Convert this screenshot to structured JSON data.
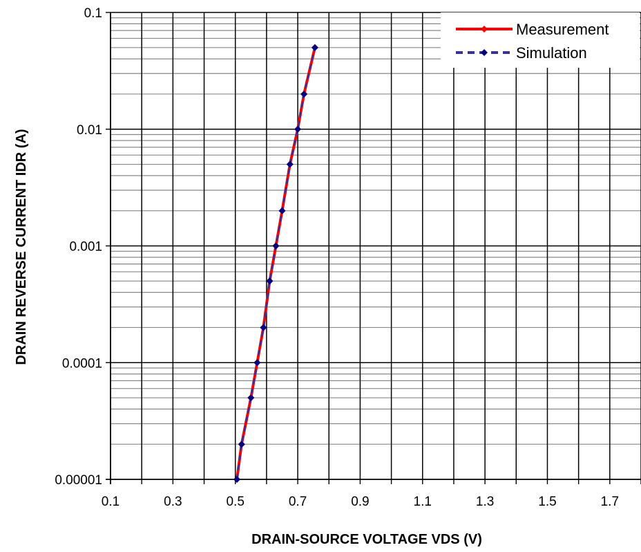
{
  "chart_data": {
    "type": "line",
    "title": "",
    "xlabel": "DRAIN-SOURCE VOLTAGE VDS (V)",
    "ylabel": "DRAIN REVERSE CURRENT IDR (A)",
    "xlim": [
      0.1,
      1.8
    ],
    "ylim": [
      1e-05,
      0.1
    ],
    "yscale": "log",
    "grid": true,
    "legend_position": "top-right",
    "x_tick_labels": [
      "0.1",
      "0.3",
      "0.5",
      "0.7",
      "0.9",
      "1.1",
      "1.3",
      "1.5",
      "1.7"
    ],
    "x_tick_values": [
      0.1,
      0.3,
      0.5,
      0.7,
      0.9,
      1.1,
      1.3,
      1.5,
      1.7
    ],
    "y_tick_labels": [
      "0.1",
      "0.01",
      "0.001",
      "0.0001",
      "0.00001"
    ],
    "y_tick_values": [
      0.1,
      0.01,
      0.001,
      0.0001,
      1e-05
    ],
    "series": [
      {
        "name": "Measurement",
        "color": "#ff0000",
        "line_style": "solid",
        "marker": "diamond",
        "marker_color": "#ff0000",
        "x": [
          0.505,
          0.52,
          0.55,
          0.57,
          0.59,
          0.61,
          0.63,
          0.65,
          0.675,
          0.7,
          0.72,
          0.755
        ],
        "y": [
          1e-05,
          2e-05,
          5e-05,
          0.0001,
          0.0002,
          0.0005,
          0.001,
          0.002,
          0.005,
          0.01,
          0.02,
          0.05
        ]
      },
      {
        "name": "Simulation",
        "color": "#33339a",
        "line_style": "dashed",
        "marker": "diamond",
        "marker_color": "#000080",
        "x": [
          0.505,
          0.52,
          0.55,
          0.57,
          0.59,
          0.61,
          0.63,
          0.65,
          0.675,
          0.7,
          0.72,
          0.755
        ],
        "y": [
          1e-05,
          2e-05,
          5e-05,
          0.0001,
          0.0002,
          0.0005,
          0.001,
          0.002,
          0.005,
          0.01,
          0.02,
          0.05
        ]
      }
    ]
  }
}
